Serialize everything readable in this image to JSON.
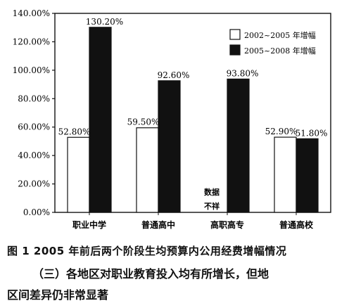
{
  "chart_data": {
    "type": "bar",
    "categories": [
      "职业中学",
      "普通高中",
      "高职高专",
      "普通高校"
    ],
    "series": [
      {
        "name": "2002~2005 年增幅",
        "color": "#ffffff",
        "values": [
          52.8,
          59.5,
          null,
          52.9
        ]
      },
      {
        "name": "2005~2008 年增幅",
        "color": "#111111",
        "values": [
          130.2,
          92.6,
          93.8,
          51.8
        ]
      }
    ],
    "data_labels": [
      [
        "52.80%",
        "59.50%",
        "",
        "52.90%"
      ],
      [
        "130.20%",
        "92.60%",
        "93.80%",
        "51.80%"
      ]
    ],
    "missing_note": [
      "数据",
      "不祥"
    ],
    "ylim": [
      0,
      140
    ],
    "yticks": [
      "0.00%",
      "20.00%",
      "40.00%",
      "60.00%",
      "80.00%",
      "100.00%",
      "120.00%",
      "140.00%"
    ],
    "legend_position": "top-right",
    "grid": false
  },
  "caption": "图 1   2005 年前后两个阶段生均预算内公用经费增幅情况",
  "paragraph": {
    "line1": "（三）各地区对职业教育投入均有所增长，但地",
    "line2": "区间差异仍非常显著"
  }
}
